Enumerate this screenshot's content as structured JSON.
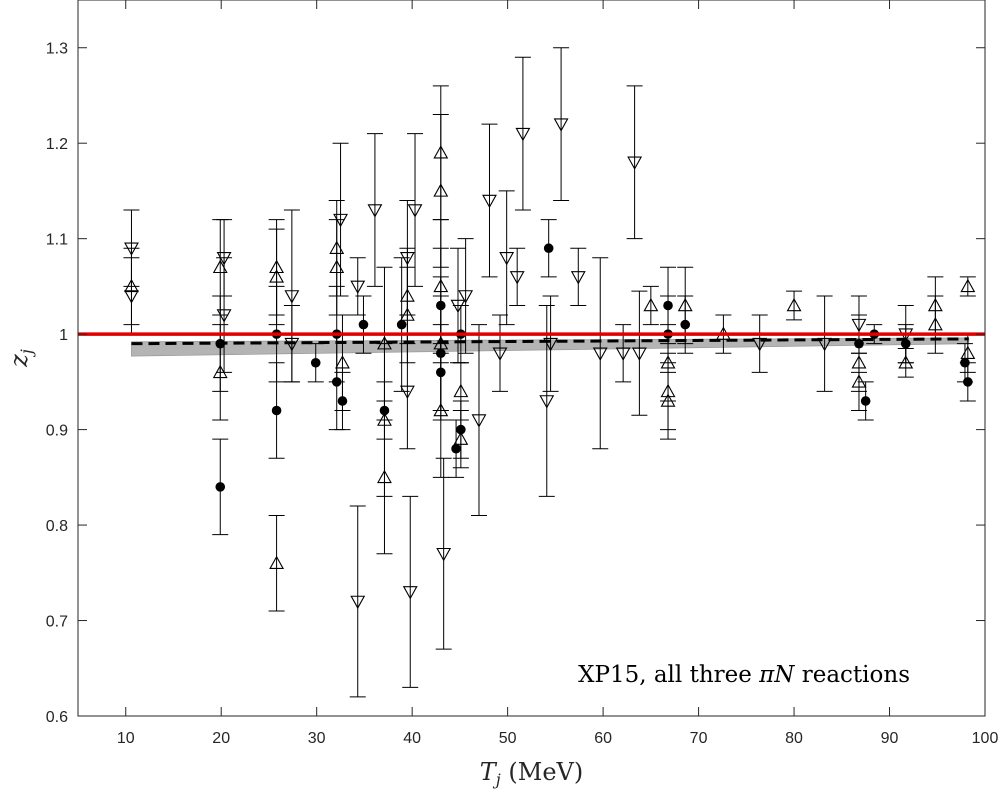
{
  "chart_data": {
    "type": "scatter",
    "xlabel": "T_j (MeV)",
    "ylabel": "z_j",
    "xlabel_parts": {
      "var": "T",
      "sub": "j",
      "unit": " (MeV)"
    },
    "ylabel_parts": {
      "var": "z",
      "sub": "j"
    },
    "annotation": "XP15, all three πN reactions",
    "annotation_parts": {
      "prefix": "XP15, all three ",
      "greek": "π",
      "var": "N",
      "suffix": " reactions"
    },
    "xlim": [
      5,
      100
    ],
    "ylim": [
      0.6,
      1.35
    ],
    "xticks": [
      10,
      20,
      30,
      40,
      50,
      60,
      70,
      80,
      90,
      100
    ],
    "yticks": [
      0.6,
      0.7,
      0.8,
      0.9,
      1.0,
      1.1,
      1.2,
      1.3
    ],
    "xtick_labels": [
      "10",
      "20",
      "30",
      "40",
      "50",
      "60",
      "70",
      "80",
      "90",
      "100"
    ],
    "ytick_labels": [
      "0.6",
      "0.7",
      "0.8",
      "0.9",
      "1",
      "1.1",
      "1.2",
      "1.3"
    ],
    "grid": false,
    "reference_line": {
      "y": 1.0,
      "color": "#e00000"
    },
    "fit": {
      "x": [
        10.6,
        98.3
      ],
      "y": [
        0.99,
        0.995
      ],
      "band_lower": [
        0.977,
        0.99
      ],
      "band_upper": [
        0.992,
        0.996
      ],
      "color": "#000000",
      "band_color": "#b4b4b4"
    },
    "series": [
      {
        "marker": "filled-circle",
        "points": [
          {
            "x": 19.9,
            "y": 0.84,
            "err": 0.05
          },
          {
            "x": 19.9,
            "y": 0.99,
            "err": 0.05
          },
          {
            "x": 25.8,
            "y": 0.92,
            "err": 0.05
          },
          {
            "x": 25.8,
            "y": 1.0,
            "err": 0.05
          },
          {
            "x": 29.9,
            "y": 0.97,
            "err": 0.02
          },
          {
            "x": 32.1,
            "y": 0.95,
            "err": 0.05
          },
          {
            "x": 32.1,
            "y": 1.0,
            "err": 0.05
          },
          {
            "x": 32.7,
            "y": 0.93,
            "err": 0.03
          },
          {
            "x": 34.9,
            "y": 1.01,
            "err": 0.03
          },
          {
            "x": 37.1,
            "y": 0.92,
            "err": 0.03
          },
          {
            "x": 38.9,
            "y": 1.01,
            "err": 0.07
          },
          {
            "x": 43.0,
            "y": 0.96,
            "err": 0.05
          },
          {
            "x": 43.0,
            "y": 0.98,
            "err": 0.06
          },
          {
            "x": 43.0,
            "y": 1.03,
            "err": 0.06
          },
          {
            "x": 44.6,
            "y": 0.88,
            "err": 0.03
          },
          {
            "x": 45.1,
            "y": 0.9,
            "err": 0.03
          },
          {
            "x": 45.1,
            "y": 1.0,
            "err": 0.03
          },
          {
            "x": 54.3,
            "y": 1.09,
            "err": 0.03
          },
          {
            "x": 66.8,
            "y": 1.0,
            "err": 0.04
          },
          {
            "x": 66.8,
            "y": 1.03,
            "err": 0.04
          },
          {
            "x": 68.6,
            "y": 1.01,
            "err": 0.03
          },
          {
            "x": 86.8,
            "y": 0.99,
            "err": 0.03
          },
          {
            "x": 87.5,
            "y": 0.93,
            "err": 0.02
          },
          {
            "x": 88.4,
            "y": 1.0,
            "err": 0.01
          },
          {
            "x": 91.7,
            "y": 0.99,
            "err": 0.02
          },
          {
            "x": 98.2,
            "y": 0.95,
            "err": 0.02
          },
          {
            "x": 97.9,
            "y": 0.97,
            "err": 0.02
          }
        ]
      },
      {
        "marker": "open-triangle-up",
        "points": [
          {
            "x": 10.6,
            "y": 1.05,
            "err": 0.04
          },
          {
            "x": 19.9,
            "y": 0.96,
            "err": 0.05
          },
          {
            "x": 19.9,
            "y": 1.07,
            "err": 0.05
          },
          {
            "x": 25.8,
            "y": 0.76,
            "err": 0.05
          },
          {
            "x": 25.8,
            "y": 1.06,
            "err": 0.05
          },
          {
            "x": 25.8,
            "y": 1.07,
            "err": 0.05
          },
          {
            "x": 32.1,
            "y": 1.07,
            "err": 0.05
          },
          {
            "x": 32.1,
            "y": 1.09,
            "err": 0.05
          },
          {
            "x": 32.7,
            "y": 0.97,
            "err": 0.05
          },
          {
            "x": 37.1,
            "y": 0.85,
            "err": 0.08
          },
          {
            "x": 37.1,
            "y": 0.91,
            "err": 0.08
          },
          {
            "x": 37.1,
            "y": 0.99,
            "err": 0.08
          },
          {
            "x": 39.5,
            "y": 1.02,
            "err": 0.05
          },
          {
            "x": 39.5,
            "y": 1.04,
            "err": 0.05
          },
          {
            "x": 43.0,
            "y": 0.92,
            "err": 0.07
          },
          {
            "x": 43.0,
            "y": 0.99,
            "err": 0.07
          },
          {
            "x": 43.0,
            "y": 1.05,
            "err": 0.07
          },
          {
            "x": 43.0,
            "y": 1.15,
            "err": 0.08
          },
          {
            "x": 43.0,
            "y": 1.19,
            "err": 0.07
          },
          {
            "x": 45.1,
            "y": 0.89,
            "err": 0.03
          },
          {
            "x": 45.1,
            "y": 0.94,
            "err": 0.03
          },
          {
            "x": 65.0,
            "y": 1.03,
            "err": 0.02
          },
          {
            "x": 66.8,
            "y": 0.93,
            "err": 0.04
          },
          {
            "x": 66.8,
            "y": 0.94,
            "err": 0.04
          },
          {
            "x": 66.8,
            "y": 0.97,
            "err": 0.04
          },
          {
            "x": 68.6,
            "y": 1.03,
            "err": 0.04
          },
          {
            "x": 72.6,
            "y": 1.0,
            "err": 0.02
          },
          {
            "x": 80.0,
            "y": 1.03,
            "err": 0.015
          },
          {
            "x": 86.8,
            "y": 0.95,
            "err": 0.03
          },
          {
            "x": 86.8,
            "y": 0.97,
            "err": 0.03
          },
          {
            "x": 91.7,
            "y": 0.97,
            "err": 0.015
          },
          {
            "x": 94.8,
            "y": 1.01,
            "err": 0.03
          },
          {
            "x": 94.8,
            "y": 1.03,
            "err": 0.03
          },
          {
            "x": 98.2,
            "y": 0.98,
            "err": 0.02
          },
          {
            "x": 98.2,
            "y": 1.05,
            "err": 0.01
          }
        ]
      },
      {
        "marker": "open-triangle-down",
        "points": [
          {
            "x": 10.6,
            "y": 1.04,
            "err": 0.04
          },
          {
            "x": 10.6,
            "y": 1.09,
            "err": 0.04
          },
          {
            "x": 20.3,
            "y": 1.02,
            "err": 0.06
          },
          {
            "x": 20.3,
            "y": 1.08,
            "err": 0.04
          },
          {
            "x": 27.4,
            "y": 0.99,
            "err": 0.04
          },
          {
            "x": 27.4,
            "y": 1.04,
            "err": 0.09
          },
          {
            "x": 32.5,
            "y": 1.12,
            "err": 0.08
          },
          {
            "x": 34.3,
            "y": 0.72,
            "err": 0.1
          },
          {
            "x": 34.3,
            "y": 1.05,
            "err": 0.03
          },
          {
            "x": 36.1,
            "y": 1.13,
            "err": 0.08
          },
          {
            "x": 39.5,
            "y": 0.94,
            "err": 0.06
          },
          {
            "x": 39.5,
            "y": 1.08,
            "err": 0.06
          },
          {
            "x": 39.8,
            "y": 0.73,
            "err": 0.1
          },
          {
            "x": 40.3,
            "y": 1.13,
            "err": 0.08
          },
          {
            "x": 43.3,
            "y": 0.77,
            "err": 0.1
          },
          {
            "x": 44.8,
            "y": 1.03,
            "err": 0.06
          },
          {
            "x": 45.6,
            "y": 1.04,
            "err": 0.06
          },
          {
            "x": 47.0,
            "y": 0.91,
            "err": 0.1
          },
          {
            "x": 48.1,
            "y": 1.14,
            "err": 0.08
          },
          {
            "x": 49.2,
            "y": 0.98,
            "err": 0.04
          },
          {
            "x": 49.9,
            "y": 1.08,
            "err": 0.07
          },
          {
            "x": 51.0,
            "y": 1.06,
            "err": 0.03
          },
          {
            "x": 51.6,
            "y": 1.21,
            "err": 0.08
          },
          {
            "x": 54.1,
            "y": 0.93,
            "err": 0.1
          },
          {
            "x": 54.5,
            "y": 0.99,
            "err": 0.05
          },
          {
            "x": 55.6,
            "y": 1.22,
            "err": 0.08
          },
          {
            "x": 57.4,
            "y": 1.06,
            "err": 0.03
          },
          {
            "x": 59.7,
            "y": 0.98,
            "err": 0.1
          },
          {
            "x": 62.1,
            "y": 0.98,
            "err": 0.03
          },
          {
            "x": 63.3,
            "y": 1.18,
            "err": 0.08
          },
          {
            "x": 63.8,
            "y": 0.98,
            "err": 0.065
          },
          {
            "x": 76.4,
            "y": 0.99,
            "err": 0.03
          },
          {
            "x": 83.2,
            "y": 0.99,
            "err": 0.05
          },
          {
            "x": 86.8,
            "y": 1.01,
            "err": 0.03
          },
          {
            "x": 91.7,
            "y": 1.0,
            "err": 0.03
          }
        ]
      }
    ]
  }
}
